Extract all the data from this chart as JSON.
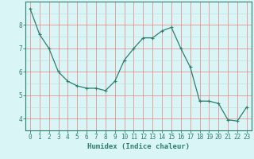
{
  "x": [
    0,
    1,
    2,
    3,
    4,
    5,
    6,
    7,
    8,
    9,
    10,
    11,
    12,
    13,
    14,
    15,
    16,
    17,
    18,
    19,
    20,
    21,
    22,
    23
  ],
  "y": [
    8.7,
    7.6,
    7.0,
    6.0,
    5.6,
    5.4,
    5.3,
    5.3,
    5.2,
    5.6,
    6.5,
    7.0,
    7.45,
    7.45,
    7.75,
    7.9,
    7.0,
    6.2,
    4.75,
    4.75,
    4.65,
    3.95,
    3.9,
    4.5
  ],
  "line_color": "#2e7d6e",
  "marker": "+",
  "marker_size": 3,
  "bg_color": "#d9f5f5",
  "grid_major_color": "#e88080",
  "grid_minor_color": "#b8dede",
  "xlabel": "Humidex (Indice chaleur)",
  "xlim": [
    -0.5,
    23.5
  ],
  "ylim": [
    3.5,
    9.0
  ],
  "yticks": [
    4,
    5,
    6,
    7,
    8
  ],
  "xticks": [
    0,
    1,
    2,
    3,
    4,
    5,
    6,
    7,
    8,
    9,
    10,
    11,
    12,
    13,
    14,
    15,
    16,
    17,
    18,
    19,
    20,
    21,
    22,
    23
  ],
  "axis_color": "#2e7d6e",
  "tick_color": "#2e7d6e",
  "label_fontsize": 6.5,
  "tick_fontsize": 5.5
}
